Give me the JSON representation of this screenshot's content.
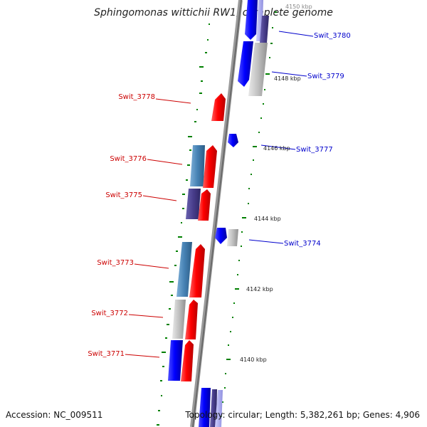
{
  "title": "Sphingomonas wittichii RW1, complete genome",
  "footer": {
    "accession": "Accession: NC_009511",
    "summary": "Topology: circular; Length: 5,382,261 bp; Genes: 4,906"
  },
  "scale_labels": [
    "4150 kbp",
    "4148 kbp",
    "4146 kbp",
    "4144 kbp",
    "4142 kbp",
    "4140 kbp"
  ],
  "gene_labels": {
    "swit_3780": "Swit_3780",
    "swit_3779": "Swit_3779",
    "swit_3778": "Swit_3778",
    "swit_3777": "Swit_3777",
    "swit_3776": "Swit_3776",
    "swit_3775": "Swit_3775",
    "swit_3774": "Swit_3774",
    "swit_3773": "Swit_3773",
    "swit_3772": "Swit_3772",
    "swit_3771": "Swit_3771"
  },
  "colors": {
    "reverse_strand": "#ff0000",
    "forward_strand": "#0000ff",
    "cog_steelblue": "#4682b4",
    "cog_purple": "#483d8b",
    "cog_gray": "#c0c0c0",
    "backbone": "#808080",
    "gc_ticks": "#008000",
    "label_left": "#cc0000",
    "label_right": "#0000cc"
  }
}
